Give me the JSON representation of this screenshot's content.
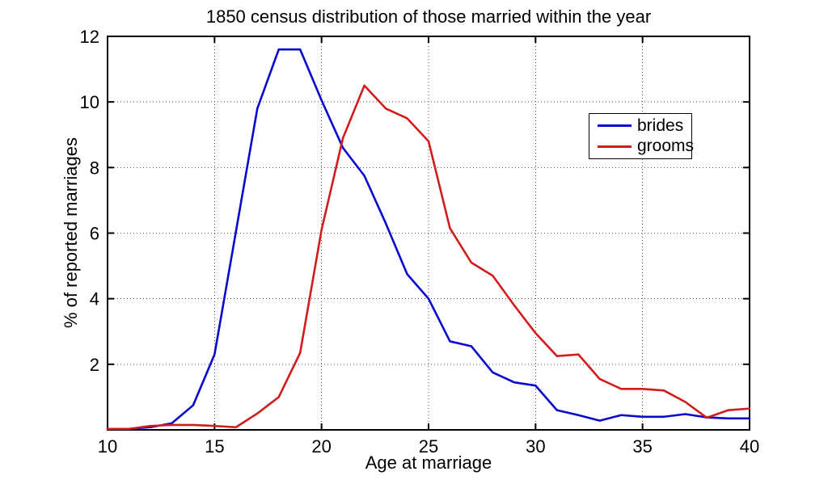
{
  "chart_data": {
    "type": "line",
    "title": "1850 census distribution of those married within the year",
    "xlabel": "Age at marriage",
    "ylabel": "% of reported marriages",
    "xlim": [
      10,
      40
    ],
    "ylim": [
      0,
      12
    ],
    "xticks": [
      10,
      15,
      20,
      25,
      30,
      35,
      40
    ],
    "yticks": [
      2,
      4,
      6,
      8,
      10,
      12
    ],
    "grid": true,
    "grid_style": "dotted",
    "legend_position": "upper right",
    "x": [
      10,
      11,
      12,
      13,
      14,
      15,
      16,
      17,
      18,
      19,
      20,
      21,
      22,
      23,
      24,
      25,
      26,
      27,
      28,
      29,
      30,
      31,
      32,
      33,
      34,
      35,
      36,
      37,
      38,
      39,
      40
    ],
    "series": [
      {
        "name": "brides",
        "color": "#0808cf",
        "values": [
          0.03,
          0.03,
          0.08,
          0.2,
          0.75,
          2.3,
          6.05,
          9.8,
          11.6,
          11.6,
          10.05,
          8.6,
          7.75,
          6.3,
          4.75,
          4.0,
          2.7,
          2.55,
          1.75,
          1.45,
          1.35,
          0.6,
          0.45,
          0.28,
          0.45,
          0.4,
          0.4,
          0.48,
          0.38,
          0.35,
          0.35
        ]
      },
      {
        "name": "grooms",
        "color": "#d21c1c",
        "values": [
          0.03,
          0.03,
          0.12,
          0.15,
          0.15,
          0.12,
          0.08,
          0.5,
          1.0,
          2.35,
          6.1,
          8.9,
          10.5,
          9.8,
          9.5,
          8.8,
          6.15,
          5.1,
          4.7,
          3.8,
          2.95,
          2.25,
          2.3,
          1.55,
          1.25,
          1.25,
          1.2,
          0.85,
          0.37,
          0.6,
          0.65
        ]
      }
    ]
  }
}
